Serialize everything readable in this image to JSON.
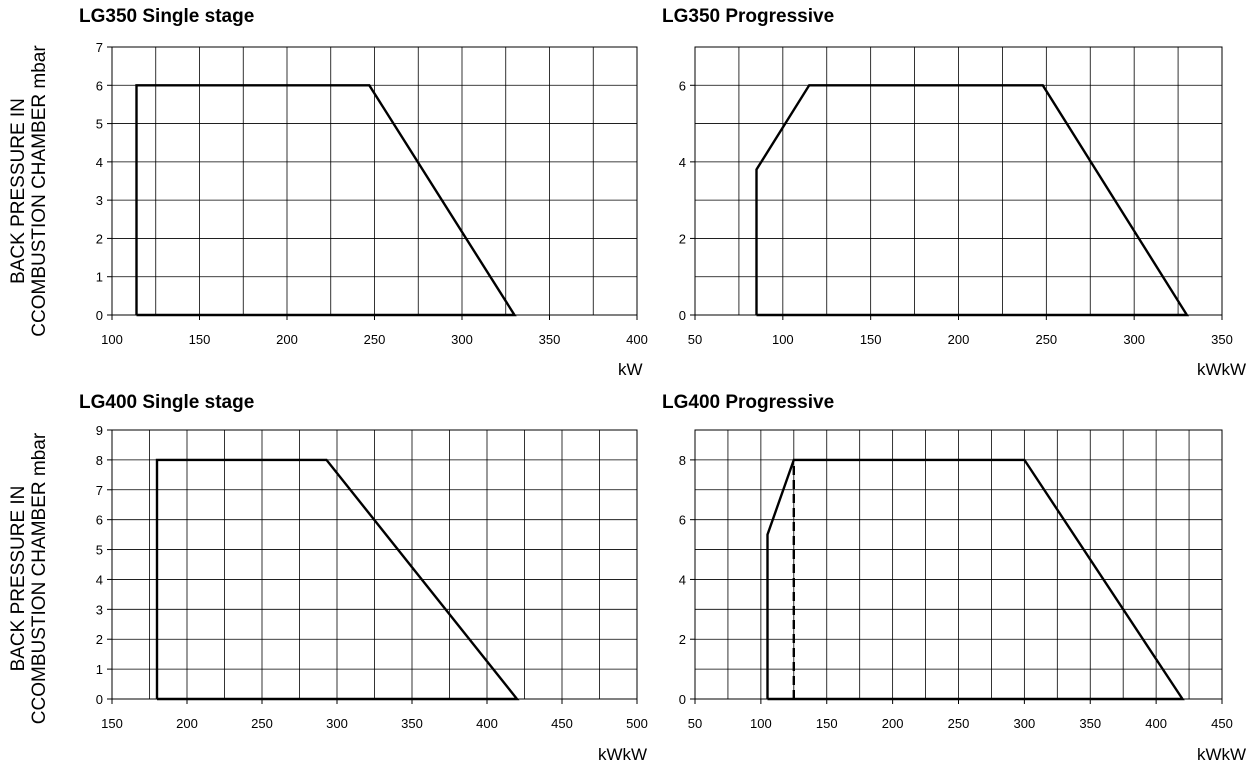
{
  "ylabel_line1": "BACK PRESSURE IN",
  "ylabel_line2": "CCOMBUSTION CHAMBER mbar",
  "chart_data": [
    {
      "type": "area",
      "title": "LG350 Single stage",
      "xlabel": "kW",
      "ylabel": "BACK PRESSURE IN CCOMBUSTION CHAMBER mbar",
      "xlim": [
        100,
        400
      ],
      "ylim": [
        0,
        7
      ],
      "xticks": [
        100,
        150,
        200,
        250,
        300,
        350,
        400
      ],
      "yticks": [
        0,
        1,
        2,
        3,
        4,
        5,
        6,
        7
      ],
      "grid_x_step": 25,
      "grid_y_step": 1,
      "grid": true,
      "series": [
        {
          "dashed": false,
          "x": [
            114,
            114,
            247,
            330,
            114
          ],
          "y": [
            0,
            6,
            6,
            0,
            0
          ]
        }
      ]
    },
    {
      "type": "area",
      "title": "LG350 Progressive",
      "xlabel": "kWkW",
      "ylabel": "",
      "xlim": [
        50,
        350
      ],
      "ylim": [
        0,
        7
      ],
      "xticks": [
        50,
        100,
        150,
        200,
        250,
        300,
        350
      ],
      "yticks": [
        0,
        2,
        4,
        6
      ],
      "grid_x_step": 25,
      "grid_y_step": 1,
      "grid": true,
      "series": [
        {
          "dashed": false,
          "x": [
            85,
            85,
            115,
            248,
            330,
            85
          ],
          "y": [
            0,
            3.8,
            6,
            6,
            0,
            0
          ]
        }
      ]
    },
    {
      "type": "area",
      "title": "LG400 Single stage",
      "xlabel": "kWkW",
      "ylabel": "BACK PRESSURE IN CCOMBUSTION CHAMBER mbar",
      "xlim": [
        150,
        500
      ],
      "ylim": [
        0,
        9
      ],
      "xticks": [
        150,
        200,
        250,
        300,
        350,
        400,
        450,
        500
      ],
      "yticks": [
        0,
        1,
        2,
        3,
        4,
        5,
        6,
        7,
        8,
        9
      ],
      "grid_x_step": 25,
      "grid_y_step": 1,
      "grid": true,
      "series": [
        {
          "dashed": false,
          "x": [
            180,
            180,
            293,
            420,
            180
          ],
          "y": [
            0,
            8,
            8,
            0,
            0
          ]
        }
      ]
    },
    {
      "type": "area",
      "title": "LG400 Progressive",
      "xlabel": "kWkW",
      "ylabel": "",
      "xlim": [
        50,
        450
      ],
      "ylim": [
        0,
        9
      ],
      "xticks": [
        50,
        100,
        150,
        200,
        250,
        300,
        350,
        400,
        450
      ],
      "yticks": [
        0,
        2,
        4,
        6,
        8
      ],
      "grid_x_step": 25,
      "grid_y_step": 1,
      "grid": true,
      "series": [
        {
          "dashed": false,
          "x": [
            105,
            105,
            125,
            300,
            420,
            105
          ],
          "y": [
            0,
            5.5,
            8,
            8,
            0,
            0
          ]
        },
        {
          "dashed": true,
          "x": [
            125,
            125
          ],
          "y": [
            0,
            8
          ]
        }
      ]
    }
  ]
}
